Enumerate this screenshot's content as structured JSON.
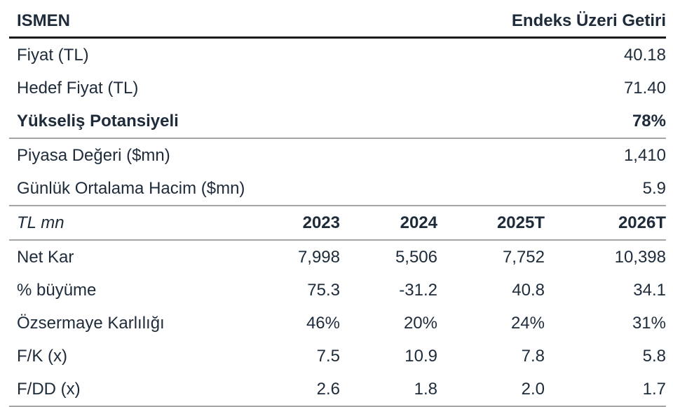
{
  "doc": {
    "type": "equity-research-summary-table",
    "ticker": "ISMEN",
    "rating": "Endeks Üzeri Getiri"
  },
  "header": {
    "left": "ISMEN",
    "right": "Endeks Üzeri Getiri"
  },
  "summary_rows": [
    {
      "label": "Fiyat (TL)",
      "value": "40.18"
    },
    {
      "label": "Hedef Fiyat (TL)",
      "value": "71.40"
    },
    {
      "label": "Yükseliş Potansiyeli",
      "value": "78%"
    },
    {
      "label": "Piyasa Değeri ($mn)",
      "value": "1,410"
    },
    {
      "label": "Günlük Ortalama Hacim ($mn)",
      "value": "5.9"
    }
  ],
  "financials": {
    "unit_label": "TL mn",
    "columns": [
      "2023",
      "2024",
      "2025T",
      "2026T"
    ],
    "rows": [
      {
        "label": "Net Kar",
        "values": [
          "7,998",
          "5,506",
          "7,752",
          "10,398"
        ]
      },
      {
        "label": "% büyüme",
        "values": [
          "75.3",
          "-31.2",
          "40.8",
          "34.1"
        ]
      },
      {
        "label": "Özsermaye Karlılığı",
        "values": [
          "46%",
          "20%",
          "24%",
          "31%"
        ]
      },
      {
        "label": "F/K (x)",
        "values": [
          "7.5",
          "10.9",
          "7.8",
          "5.8"
        ]
      },
      {
        "label": "F/DD (x)",
        "values": [
          "2.6",
          "1.8",
          "2.0",
          "1.7"
        ]
      }
    ]
  },
  "colors": {
    "text": "#1e2b3a",
    "heavy_rule": "#1a1a1a",
    "light_rule": "#a6a6a6",
    "background": "#ffffff"
  }
}
